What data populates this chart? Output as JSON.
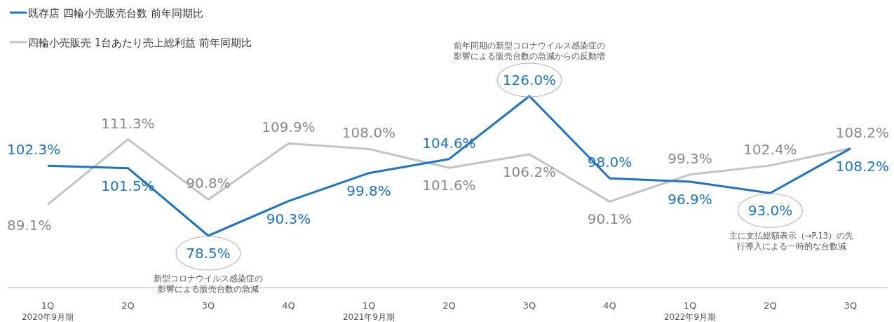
{
  "chart_data": {
    "type": "line",
    "categories": [
      "1Q\n2020年9月期",
      "2Q",
      "3Q",
      "4Q",
      "1Q\n2021年9月期",
      "2Q",
      "3Q",
      "4Q",
      "1Q\n2022年9月期",
      "2Q",
      "3Q"
    ],
    "series": [
      {
        "name": "既存店 四輪小売販売台数 前年同期比",
        "color": "#1f73c1",
        "values": [
          102.3,
          101.5,
          78.5,
          90.3,
          99.8,
          104.6,
          126.0,
          98.0,
          96.9,
          93.0,
          108.2
        ],
        "value_labels": [
          "102.3%",
          "101.5%",
          "78.5%",
          "90.3%",
          "99.8%",
          "104.6%",
          "126.0%",
          "98.0%",
          "96.9%",
          "93.0%",
          "108.2%"
        ]
      },
      {
        "name": "四輪小売販売 1台あたり売上総利益 前年同期比",
        "color": "#c3c3c3",
        "values": [
          89.1,
          111.3,
          90.8,
          109.9,
          108.0,
          101.6,
          106.2,
          90.1,
          99.3,
          102.4,
          108.2
        ],
        "value_labels": [
          "89.1%",
          "111.3%",
          "90.8%",
          "109.9%",
          "108.0%",
          "101.6%",
          "106.2%",
          "90.1%",
          "99.3%",
          "102.4%",
          "108.2%"
        ]
      }
    ],
    "annotations": [
      "新型コロナウイルス感染症の影響による販売台数の急減",
      "前年同期の新型コロナウイルス感染症の影響による販売台数の急減からの反動増",
      "主に支払総額表示（→P.13）の先行導入による一時的な台数減"
    ],
    "legend": "top left",
    "marker": "none",
    "line_style": "solid"
  }
}
